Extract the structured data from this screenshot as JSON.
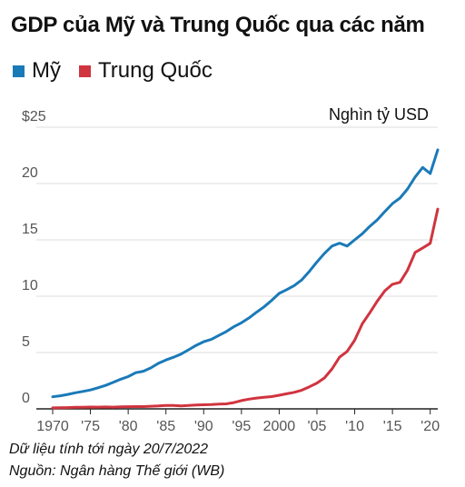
{
  "title": "GDP của Mỹ và Trung Quốc qua các năm",
  "unit_label": "Nghìn tỷ USD",
  "footer": {
    "note": "Dữ liệu tính tới ngày 20/7/2022",
    "source": "Nguồn: Ngân hàng Thế giới (WB)"
  },
  "chart_data": {
    "type": "line",
    "title": "GDP của Mỹ và Trung Quốc qua các năm",
    "ylabel": "Nghìn tỷ USD",
    "xlim": [
      1970,
      2021
    ],
    "ylim": [
      0,
      25
    ],
    "grid": true,
    "legend_position": "top-left",
    "x_ticks": [
      1970,
      1975,
      1980,
      1985,
      1990,
      1995,
      2000,
      2005,
      2010,
      2015,
      2020
    ],
    "x_tick_labels": [
      "1970",
      "'75",
      "'80",
      "'85",
      "'90",
      "'95",
      "2000",
      "'05",
      "'10",
      "'15",
      "'20"
    ],
    "y_ticks": [
      0,
      5,
      10,
      15,
      20,
      25
    ],
    "y_tick_labels": [
      "0",
      "5",
      "10",
      "15",
      "20",
      "$25"
    ],
    "x": [
      1970,
      1971,
      1972,
      1973,
      1974,
      1975,
      1976,
      1977,
      1978,
      1979,
      1980,
      1981,
      1982,
      1983,
      1984,
      1985,
      1986,
      1987,
      1988,
      1989,
      1990,
      1991,
      1992,
      1993,
      1994,
      1995,
      1996,
      1997,
      1998,
      1999,
      2000,
      2001,
      2002,
      2003,
      2004,
      2005,
      2006,
      2007,
      2008,
      2009,
      2010,
      2011,
      2012,
      2013,
      2014,
      2015,
      2016,
      2017,
      2018,
      2019,
      2020,
      2021
    ],
    "series": [
      {
        "name": "Mỹ",
        "color": "#1a7ab8",
        "values": [
          1.07,
          1.16,
          1.28,
          1.43,
          1.55,
          1.68,
          1.87,
          2.08,
          2.35,
          2.63,
          2.86,
          3.21,
          3.34,
          3.64,
          4.04,
          4.34,
          4.58,
          4.86,
          5.24,
          5.64,
          5.96,
          6.16,
          6.52,
          6.86,
          7.29,
          7.64,
          8.07,
          8.58,
          9.06,
          9.63,
          10.25,
          10.58,
          10.94,
          11.46,
          12.21,
          13.04,
          13.81,
          14.45,
          14.71,
          14.45,
          15.0,
          15.54,
          16.2,
          16.78,
          17.52,
          18.22,
          18.71,
          19.52,
          20.58,
          21.43,
          20.89,
          22.99
        ]
      },
      {
        "name": "Trung Quốc",
        "color": "#d0343f",
        "values": [
          0.09,
          0.1,
          0.11,
          0.14,
          0.14,
          0.16,
          0.15,
          0.17,
          0.15,
          0.18,
          0.19,
          0.2,
          0.2,
          0.23,
          0.26,
          0.31,
          0.3,
          0.27,
          0.31,
          0.35,
          0.36,
          0.38,
          0.43,
          0.44,
          0.56,
          0.73,
          0.86,
          0.96,
          1.03,
          1.09,
          1.21,
          1.34,
          1.47,
          1.66,
          1.96,
          2.29,
          2.75,
          3.55,
          4.59,
          5.1,
          6.09,
          7.55,
          8.53,
          9.57,
          10.48,
          11.06,
          11.23,
          12.31,
          13.89,
          14.28,
          14.69,
          17.73
        ]
      }
    ]
  }
}
